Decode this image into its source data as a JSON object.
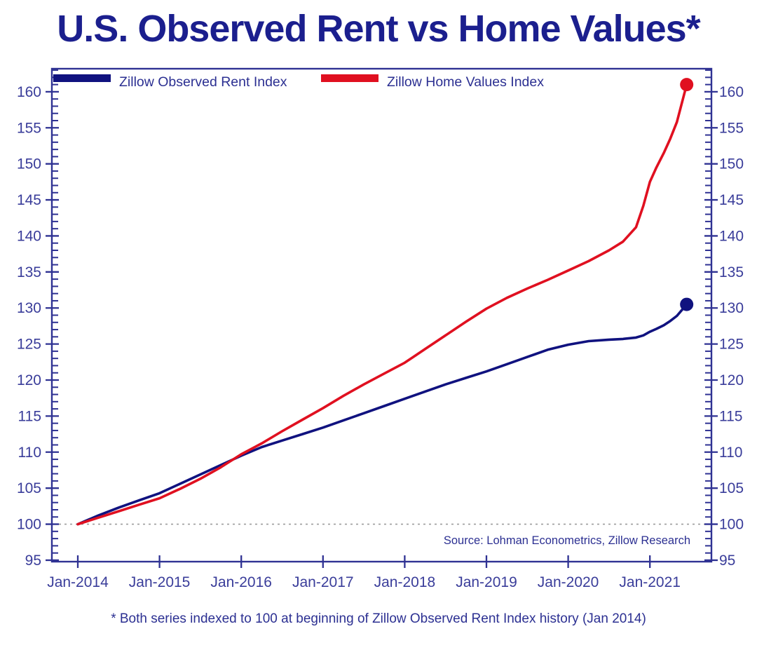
{
  "title": "U.S. Observed Rent vs Home Values*",
  "footnote": "* Both series indexed to 100 at beginning of Zillow Observed Rent Index history (Jan 2014)",
  "source": "Source: Lohman Econometrics, Zillow Research",
  "colors": {
    "title_text": "#1b1f8e",
    "axis_stroke": "#2f3293",
    "tick_label_text": "#3a3d9a",
    "annotation_text": "#2c3092",
    "baseline_dashed": "#9b9b9b",
    "rent_line": "#10127f",
    "home_line": "#e01020"
  },
  "chart_data": {
    "type": "line",
    "title": "U.S. Observed Rent vs Home Values*",
    "xlabel": "",
    "ylabel": "",
    "grid": false,
    "legend_position": "top-inside",
    "baseline_value": 100,
    "ylim": [
      94.8,
      163.2
    ],
    "xlim": [
      2013.68,
      2021.76
    ],
    "y_major_ticks": [
      95,
      100,
      105,
      110,
      115,
      120,
      125,
      130,
      135,
      140,
      145,
      150,
      155,
      160
    ],
    "y_minor_tick_step": 1,
    "y_minor_tick_max": 163,
    "x_tick_years": [
      2014,
      2015,
      2016,
      2017,
      2018,
      2019,
      2020,
      2021
    ],
    "x_tick_labels": [
      "Jan-2014",
      "Jan-2015",
      "Jan-2016",
      "Jan-2017",
      "Jan-2018",
      "Jan-2019",
      "Jan-2020",
      "Jan-2021"
    ],
    "x": [
      2014.0,
      2014.25,
      2014.5,
      2014.75,
      2015.0,
      2015.25,
      2015.5,
      2015.75,
      2016.0,
      2016.25,
      2016.5,
      2016.75,
      2017.0,
      2017.25,
      2017.5,
      2017.75,
      2018.0,
      2018.25,
      2018.5,
      2018.75,
      2019.0,
      2019.25,
      2019.5,
      2019.75,
      2020.0,
      2020.25,
      2020.5,
      2020.67,
      2020.83,
      2020.92,
      2021.0,
      2021.08,
      2021.17,
      2021.25,
      2021.33,
      2021.45
    ],
    "series": [
      {
        "name": "Zillow Observed Rent Index",
        "color": "#10127f",
        "end_value": 130.5,
        "values": [
          100.0,
          101.2,
          102.3,
          103.3,
          104.3,
          105.6,
          106.9,
          108.2,
          109.5,
          110.7,
          111.6,
          112.5,
          113.4,
          114.4,
          115.4,
          116.4,
          117.4,
          118.4,
          119.4,
          120.3,
          121.2,
          122.2,
          123.2,
          124.2,
          124.9,
          125.4,
          125.6,
          125.7,
          125.9,
          126.2,
          126.7,
          127.1,
          127.6,
          128.2,
          128.9,
          130.5
        ]
      },
      {
        "name": "Zillow Home Values Index",
        "color": "#e01020",
        "end_value": 161.0,
        "values": [
          100.0,
          100.9,
          101.8,
          102.7,
          103.6,
          104.9,
          106.3,
          107.9,
          109.7,
          111.2,
          112.9,
          114.5,
          116.1,
          117.8,
          119.4,
          120.9,
          122.4,
          124.3,
          126.2,
          128.1,
          129.9,
          131.4,
          132.7,
          133.9,
          135.2,
          136.5,
          138.0,
          139.2,
          141.2,
          144.2,
          147.5,
          149.5,
          151.5,
          153.5,
          155.8,
          161.0
        ]
      }
    ]
  }
}
